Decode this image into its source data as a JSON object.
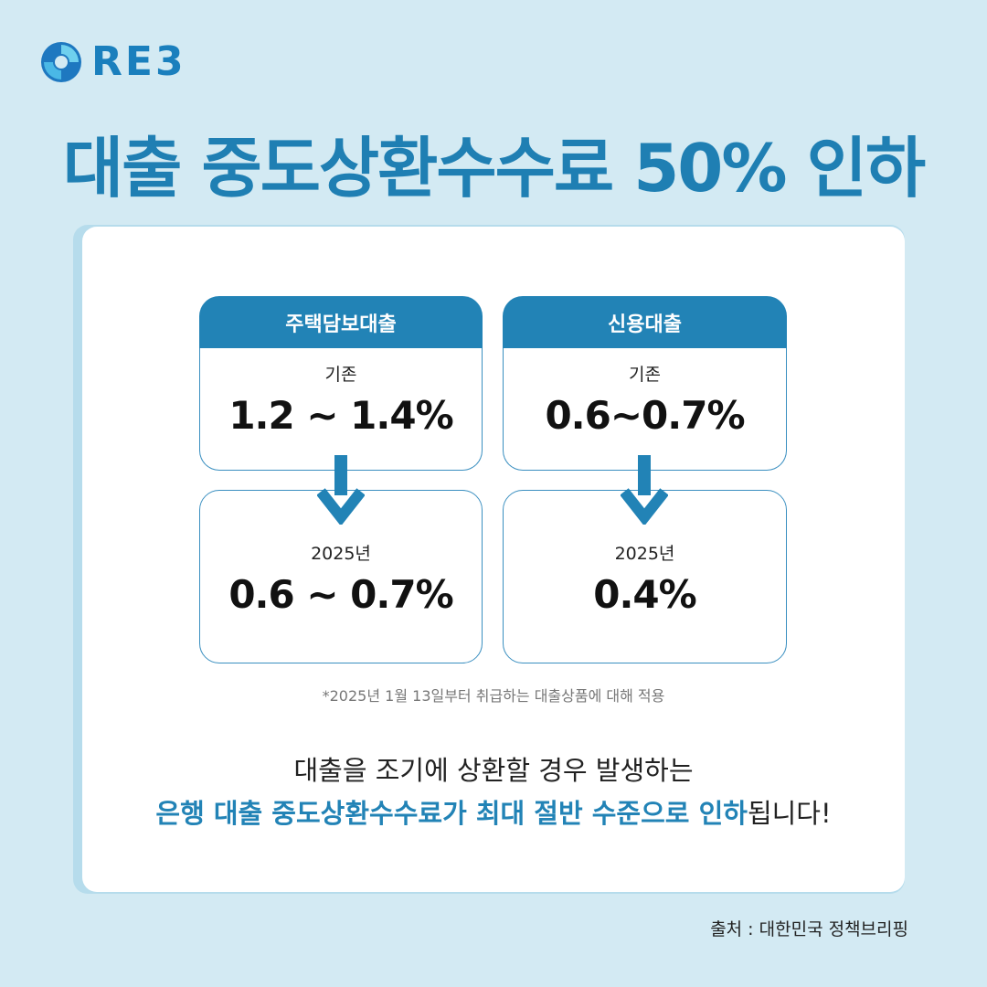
{
  "logo": {
    "text": "RE3"
  },
  "title": "대출 중도상환수수료 50% 인하",
  "columns": [
    {
      "header": "주택담보대출",
      "before": {
        "label": "기존",
        "value": "1.2 ~ 1.4%"
      },
      "after": {
        "label": "2025년",
        "value": "0.6 ~ 0.7%"
      }
    },
    {
      "header": "신용대출",
      "before": {
        "label": "기존",
        "value": "0.6~0.7%"
      },
      "after": {
        "label": "2025년",
        "value": "0.4%"
      }
    }
  ],
  "note": "*2025년 1월 13일부터 취급하는 대출상품에 대해 적용",
  "message": {
    "line1": "대출을 조기에 상환할 경우 발생하는",
    "line2_highlight": "은행 대출 중도상환수수료가 최대 절반 수준으로 인하",
    "line2_rest": "됩니다!"
  },
  "source": "출처 : 대한민국 정책브리핑",
  "colors": {
    "accent": "#2283b6",
    "background": "#d3eaf3",
    "title": "#1f7fb3"
  }
}
